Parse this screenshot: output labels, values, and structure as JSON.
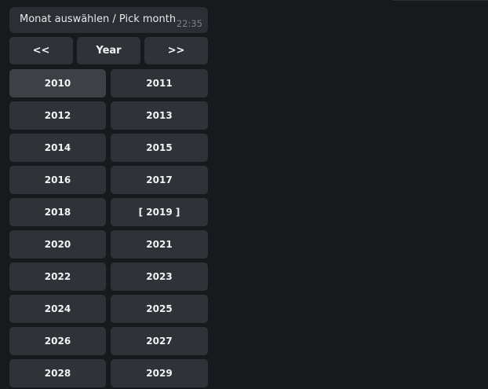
{
  "message": {
    "text": "Monat auswählen / Pick month",
    "time": "22:35"
  },
  "nav": {
    "prev": "<<",
    "mode": "Year",
    "next": ">>"
  },
  "years": [
    "2010",
    "2011",
    "2012",
    "2013",
    "2014",
    "2015",
    "2016",
    "2017",
    "2018",
    "[ 2019 ]",
    "2020",
    "2021",
    "2022",
    "2023",
    "2024",
    "2025",
    "2026",
    "2027",
    "2028",
    "2029"
  ],
  "hovered": "2010",
  "colors": {
    "background": "#17191d",
    "button": "#2f3237",
    "button_hover": "#3d4045",
    "bubble": "#2b2e33"
  }
}
